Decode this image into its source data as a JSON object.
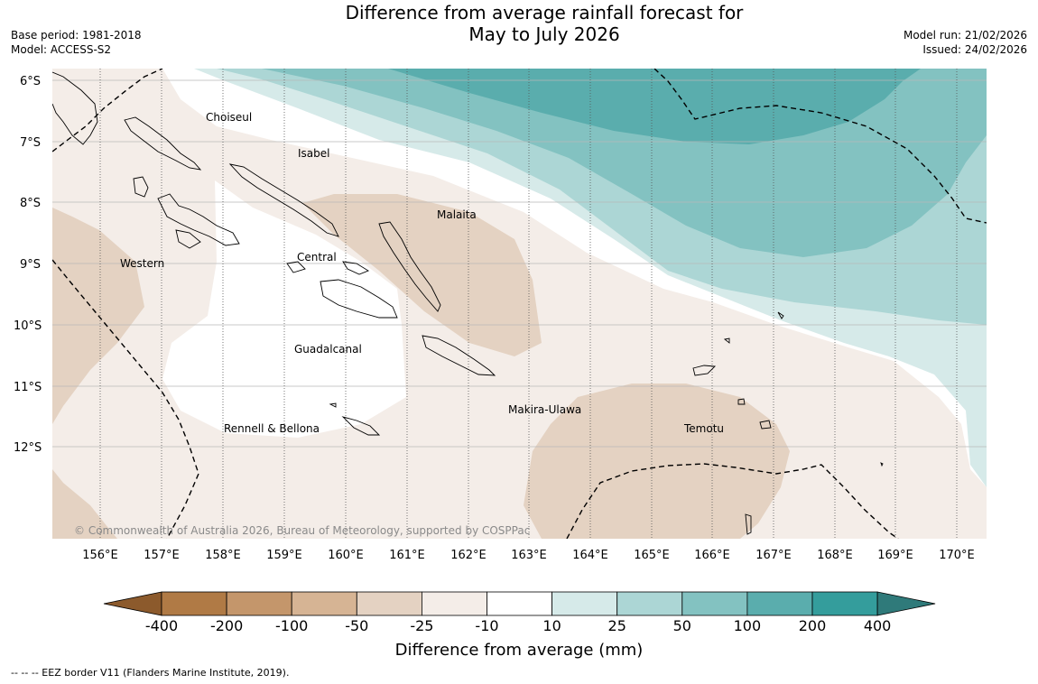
{
  "title_line1": "Difference from average rainfall forecast for",
  "title_line2": "May to July 2026",
  "base_period": "Base period: 1981-2018",
  "model": "Model: ACCESS-S2",
  "model_run": "Model run: 21/02/2026",
  "issued": "Issued: 24/02/2026",
  "latitude_labels": [
    "6°S",
    "7°S",
    "8°S",
    "9°S",
    "10°S",
    "11°S",
    "12°S"
  ],
  "longitude_labels": [
    "156°E",
    "157°E",
    "158°E",
    "159°E",
    "160°E",
    "161°E",
    "162°E",
    "163°E",
    "164°E",
    "165°E",
    "166°E",
    "167°E",
    "168°E",
    "169°E",
    "170°E"
  ],
  "places": [
    "Choiseul",
    "Isabel",
    "Malaita",
    "Central",
    "Western",
    "Guadalcanal",
    "Makira-Ulawa",
    "Rennell & Bellona",
    "Temotu"
  ],
  "credit": "© Commonwealth of Australia 2026, Bureau of Meteorology, supported by COSPPac",
  "colorbar": {
    "labels": [
      "-400",
      "-200",
      "-100",
      "-50",
      "-25",
      "-10",
      "10",
      "25",
      "50",
      "100",
      "200",
      "400"
    ],
    "colors": [
      "#8c5a2c",
      "#b07a45",
      "#c4966b",
      "#d6b494",
      "#e4d2c2",
      "#f4ede8",
      "#ffffff",
      "#d6eae9",
      "#acd6d5",
      "#83c2c1",
      "#5aadad",
      "#349d9c",
      "#2f7a7a"
    ],
    "title": "Difference from average (mm)"
  },
  "footnote": "--  --  -- EEZ border V11 (Flanders Marine Institute, 2019)."
}
